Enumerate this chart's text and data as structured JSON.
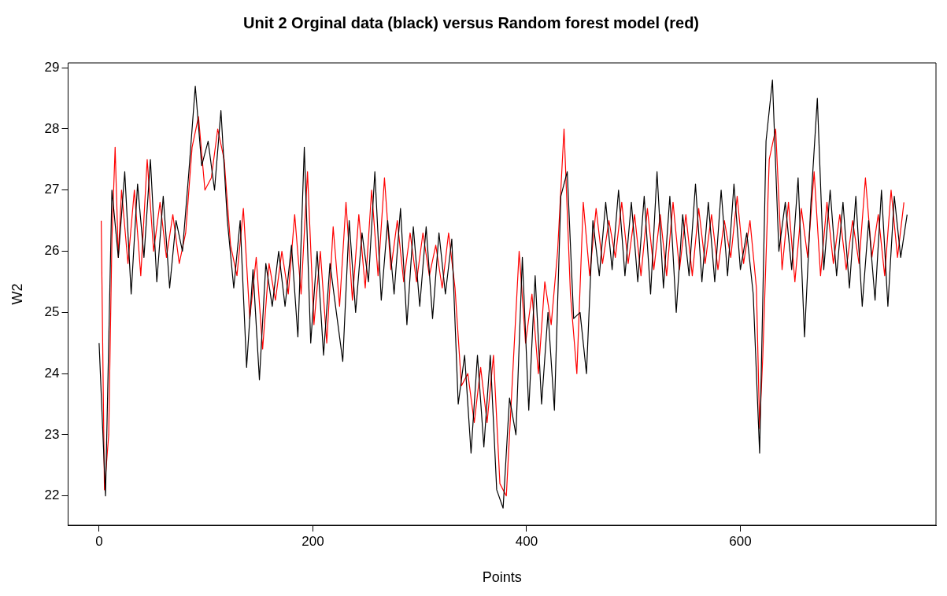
{
  "chart_data": {
    "type": "line",
    "title": "Unit 2 Orginal data (black) versus Random forest model (red)",
    "xlabel": "Points",
    "ylabel": "W2",
    "xlim": [
      -29,
      783
    ],
    "ylim": [
      21.52,
      29.08
    ],
    "xticks": [
      0,
      200,
      400,
      600
    ],
    "yticks": [
      22,
      23,
      24,
      25,
      26,
      27,
      28,
      29
    ],
    "grid": false,
    "legend": false,
    "marker": "none",
    "line_style": "solid",
    "series": [
      {
        "color": "#000000",
        "x": [
          0,
          6,
          12,
          18,
          24,
          30,
          36,
          42,
          48,
          54,
          60,
          66,
          72,
          78,
          84,
          90,
          96,
          102,
          108,
          114,
          120,
          126,
          132,
          138,
          144,
          150,
          156,
          162,
          168,
          174,
          180,
          186,
          192,
          198,
          204,
          210,
          216,
          222,
          228,
          234,
          240,
          246,
          252,
          258,
          264,
          270,
          276,
          282,
          288,
          294,
          300,
          306,
          312,
          318,
          324,
          330,
          336,
          342,
          348,
          354,
          360,
          366,
          372,
          378,
          384,
          390,
          396,
          402,
          408,
          414,
          420,
          426,
          432,
          438,
          444,
          450,
          456,
          462,
          468,
          474,
          480,
          486,
          492,
          498,
          504,
          510,
          516,
          522,
          528,
          534,
          540,
          546,
          552,
          558,
          564,
          570,
          576,
          582,
          588,
          594,
          600,
          606,
          612,
          618,
          624,
          630,
          636,
          642,
          648,
          654,
          660,
          666,
          672,
          678,
          684,
          690,
          696,
          702,
          708,
          714,
          720,
          726,
          732,
          738,
          744,
          750,
          756
        ],
        "values": [
          24.5,
          22.0,
          27.0,
          25.9,
          27.3,
          25.3,
          27.1,
          25.9,
          27.5,
          25.5,
          26.9,
          25.4,
          26.5,
          26.0,
          27.3,
          28.7,
          27.4,
          27.8,
          27.0,
          28.3,
          26.5,
          25.4,
          26.5,
          24.1,
          25.7,
          23.9,
          25.8,
          25.1,
          26.0,
          25.1,
          26.1,
          24.6,
          27.7,
          24.5,
          26.0,
          24.3,
          25.8,
          25.0,
          24.2,
          26.5,
          25.0,
          26.3,
          25.5,
          27.3,
          25.2,
          26.5,
          25.3,
          26.7,
          24.8,
          26.4,
          25.1,
          26.4,
          24.9,
          26.3,
          25.3,
          26.2,
          23.5,
          24.3,
          22.7,
          24.3,
          22.8,
          24.3,
          22.1,
          21.8,
          23.6,
          23.0,
          25.9,
          23.4,
          25.6,
          23.5,
          25.0,
          23.4,
          26.9,
          27.3,
          24.9,
          25.0,
          24.0,
          26.5,
          25.6,
          26.8,
          25.7,
          27.0,
          25.6,
          26.8,
          25.5,
          26.9,
          25.3,
          27.3,
          25.4,
          26.9,
          25.0,
          26.6,
          25.6,
          27.1,
          25.5,
          26.8,
          25.5,
          27.0,
          25.6,
          27.1,
          25.7,
          26.3,
          25.3,
          22.7,
          27.8,
          28.8,
          26.0,
          26.8,
          25.7,
          27.2,
          24.6,
          26.8,
          28.5,
          25.7,
          27.0,
          25.6,
          26.8,
          25.4,
          26.9,
          25.1,
          26.5,
          25.2,
          27.0,
          25.1,
          26.9,
          25.9,
          26.6
        ]
      },
      {
        "color": "#ff0000",
        "x": [
          2,
          5,
          9,
          12,
          15,
          18,
          21,
          27,
          33,
          39,
          45,
          51,
          57,
          63,
          69,
          75,
          81,
          87,
          93,
          99,
          105,
          111,
          117,
          123,
          129,
          135,
          141,
          147,
          153,
          159,
          165,
          171,
          177,
          183,
          189,
          195,
          201,
          207,
          213,
          219,
          225,
          231,
          237,
          243,
          249,
          255,
          261,
          267,
          273,
          279,
          285,
          291,
          297,
          303,
          309,
          315,
          321,
          327,
          333,
          339,
          345,
          351,
          357,
          363,
          369,
          375,
          381,
          387,
          393,
          399,
          405,
          411,
          417,
          423,
          429,
          435,
          441,
          447,
          453,
          459,
          465,
          471,
          477,
          483,
          489,
          495,
          501,
          507,
          513,
          519,
          525,
          531,
          537,
          543,
          549,
          555,
          561,
          567,
          573,
          579,
          585,
          591,
          597,
          603,
          609,
          615,
          618,
          621,
          627,
          633,
          639,
          645,
          651,
          657,
          663,
          669,
          675,
          681,
          687,
          693,
          699,
          705,
          711,
          717,
          723,
          729,
          735,
          741,
          747,
          753
        ],
        "values": [
          26.5,
          22.1,
          23.0,
          26.2,
          27.7,
          25.9,
          27.0,
          25.8,
          27.0,
          25.6,
          27.5,
          26.0,
          26.8,
          25.9,
          26.6,
          25.8,
          26.3,
          27.7,
          28.2,
          27.0,
          27.2,
          28.0,
          27.5,
          26.1,
          25.6,
          26.7,
          24.9,
          25.9,
          24.4,
          25.8,
          25.2,
          26.0,
          25.3,
          26.6,
          25.3,
          27.3,
          24.8,
          26.0,
          24.5,
          26.4,
          25.1,
          26.8,
          25.2,
          26.6,
          25.4,
          27.0,
          25.6,
          27.2,
          25.7,
          26.5,
          25.5,
          26.3,
          25.5,
          26.3,
          25.6,
          26.1,
          25.4,
          26.3,
          25.4,
          23.8,
          24.0,
          23.2,
          24.1,
          23.2,
          24.3,
          22.2,
          22.0,
          24.0,
          26.0,
          24.5,
          25.3,
          24.0,
          25.5,
          24.8,
          26.0,
          28.0,
          25.3,
          24.0,
          26.8,
          25.6,
          26.7,
          25.8,
          26.5,
          25.9,
          26.8,
          25.8,
          26.6,
          25.6,
          26.7,
          25.7,
          26.6,
          25.6,
          26.8,
          25.7,
          26.6,
          25.6,
          26.7,
          25.8,
          26.6,
          25.7,
          26.5,
          25.9,
          26.9,
          25.8,
          26.5,
          25.4,
          23.1,
          24.3,
          27.5,
          28.0,
          25.7,
          26.8,
          25.5,
          26.7,
          25.9,
          27.3,
          25.6,
          26.8,
          25.8,
          26.6,
          25.7,
          26.5,
          25.8,
          27.2,
          25.9,
          26.6,
          25.6,
          27.0,
          25.9,
          26.8
        ]
      }
    ]
  }
}
